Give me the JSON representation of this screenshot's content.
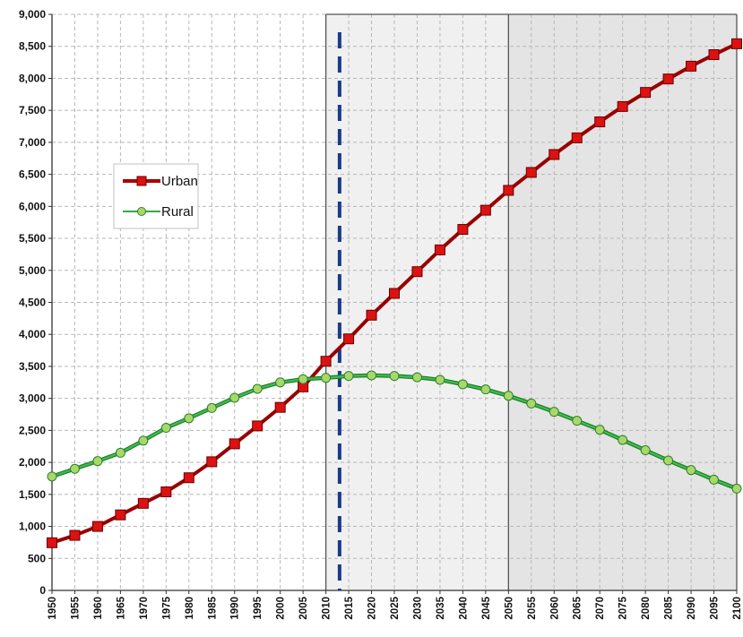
{
  "chart_data": {
    "type": "line",
    "title": "",
    "xlabel": "",
    "ylabel": "",
    "x": [
      1950,
      1955,
      1960,
      1965,
      1970,
      1975,
      1980,
      1985,
      1990,
      1995,
      2000,
      2005,
      2010,
      2015,
      2020,
      2025,
      2030,
      2035,
      2040,
      2045,
      2050,
      2055,
      2060,
      2065,
      2070,
      2075,
      2080,
      2085,
      2090,
      2095,
      2100
    ],
    "xlim": [
      1950,
      2100
    ],
    "ylim": [
      0,
      9000
    ],
    "yticks": [
      0,
      500,
      1000,
      1500,
      2000,
      2500,
      3000,
      3500,
      4000,
      4500,
      5000,
      5500,
      6000,
      6500,
      7000,
      7500,
      8000,
      8500,
      9000
    ],
    "ytick_labels": [
      "0",
      "500",
      "1,000",
      "1,500",
      "2,000",
      "2,500",
      "3,000",
      "3,500",
      "4,000",
      "4,500",
      "5,000",
      "5,500",
      "6,000",
      "6,500",
      "7,000",
      "7,500",
      "8,000",
      "8,500",
      "9,000"
    ],
    "xtick_labels": [
      "1950",
      "1955",
      "1960",
      "1965",
      "1970",
      "1975",
      "1980",
      "1985",
      "1990",
      "1995",
      "2000",
      "2005",
      "2010",
      "2015",
      "2020",
      "2025",
      "2030",
      "2035",
      "2040",
      "2045",
      "2050",
      "2055",
      "2060",
      "2065",
      "2070",
      "2075",
      "2080",
      "2085",
      "2090",
      "2095",
      "2100"
    ],
    "grid": true,
    "legend_position": "upper-left",
    "series": [
      {
        "name": "Urban",
        "color": "#cc0000",
        "marker": "square",
        "values": [
          745,
          860,
          1000,
          1180,
          1360,
          1540,
          1760,
          2010,
          2290,
          2570,
          2860,
          3180,
          3580,
          3930,
          4300,
          4640,
          4980,
          5320,
          5640,
          5940,
          6250,
          6530,
          6810,
          7070,
          7320,
          7560,
          7780,
          7990,
          8190,
          8370,
          8540
        ]
      },
      {
        "name": "Rural",
        "color": "#22aa33",
        "marker": "circle",
        "values": [
          1780,
          1900,
          2020,
          2150,
          2340,
          2540,
          2690,
          2850,
          3010,
          3150,
          3250,
          3300,
          3320,
          3350,
          3360,
          3350,
          3330,
          3290,
          3220,
          3140,
          3040,
          2920,
          2790,
          2650,
          2510,
          2350,
          2190,
          2030,
          1880,
          1730,
          1590
        ]
      }
    ],
    "annotations": {
      "shaded_region_1": [
        2010,
        2050
      ],
      "shaded_region_2": [
        2050,
        2100
      ],
      "reference_line_year": 2013
    }
  }
}
